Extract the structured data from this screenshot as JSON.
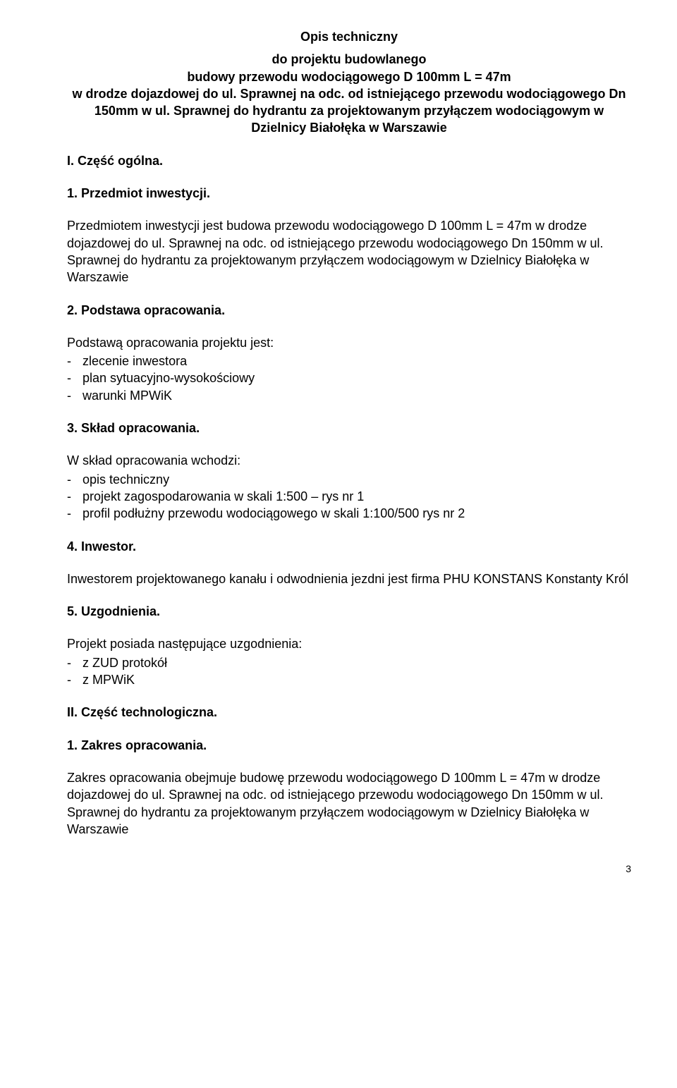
{
  "title": "Opis techniczny",
  "subtitle": "do projektu budowlanego\nbudowy przewodu wodociągowego D 100mm L = 47m\nw  drodze dojazdowej do ul. Sprawnej na odc. od istniejącego przewodu wodociągowego Dn 150mm w ul. Sprawnej do hydrantu za projektowanym przyłączem wodociągowym w Dzielnicy Białołęka w Warszawie",
  "section_I": "I.       Część ogólna.",
  "h1": "1.  Przedmiot inwestycji.",
  "p1": "Przedmiotem inwestycji jest  budowa przewodu wodociągowego D 100mm L = 47m w  drodze dojazdowej do ul. Sprawnej na odc. od istniejącego przewodu wodociągowego Dn 150mm w ul. Sprawnej do hydrantu za projektowanym przyłączem wodociągowym w Dzielnicy Białołęka w Warszawie",
  "h2": "2.  Podstawa opracowania.",
  "p2_intro": "Podstawą opracowania projektu jest:",
  "p2_items": [
    "zlecenie inwestora",
    "plan sytuacyjno-wysokościowy",
    "warunki MPWiK"
  ],
  "h3": "3.  Skład opracowania.",
  "p3_intro": "W skład opracowania wchodzi:",
  "p3_items": [
    "opis techniczny",
    "projekt zagospodarowania w skali 1:500 – rys nr 1",
    "profil podłużny przewodu wodociągowego w skali 1:100/500   rys nr 2"
  ],
  "h4": "4.  Inwestor.",
  "p4": "Inwestorem projektowanego kanału i odwodnienia jezdni jest firma PHU KONSTANS Konstanty Król",
  "h5": "5.  Uzgodnienia.",
  "p5_intro": "Projekt posiada następujące uzgodnienia:",
  "p5_items": [
    "z ZUD protokół",
    "z MPWiK"
  ],
  "section_II": "II.       Część technologiczna.",
  "h6": "1.  Zakres opracowania.",
  "p6": "Zakres opracowania obejmuje  budowę przewodu wodociągowego D 100mm L = 47m w  drodze dojazdowej do ul. Sprawnej na odc. od istniejącego przewodu wodociągowego Dn 150mm w ul. Sprawnej do hydrantu za projektowanym przyłączem wodociągowym w Dzielnicy Białołęka w Warszawie",
  "page_number": "3"
}
